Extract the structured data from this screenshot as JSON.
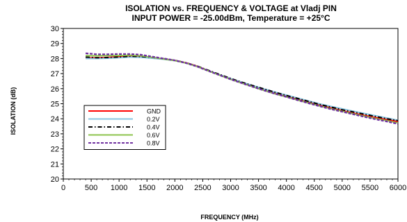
{
  "chart_data": {
    "type": "line",
    "title": "ISOLATION vs. FREQUENCY & VOLTAGE at Vladj PIN",
    "subtitle": "INPUT POWER = -25.00dBm, Temperature = +25°C",
    "xlabel": "FREQUENCY (MHz)",
    "ylabel": "ISOLATION (dB)",
    "xlim": [
      0,
      6000
    ],
    "ylim": [
      20,
      30
    ],
    "xticks": [
      0,
      500,
      1000,
      1500,
      2000,
      2500,
      3000,
      3500,
      4000,
      4500,
      5000,
      5500,
      6000
    ],
    "yticks": [
      20,
      21,
      22,
      23,
      24,
      25,
      26,
      27,
      28,
      29,
      30
    ],
    "grid": false,
    "legend_position": "left-lower",
    "x": [
      400,
      600,
      800,
      1000,
      1200,
      1400,
      1600,
      1800,
      2000,
      2200,
      2400,
      2600,
      2800,
      3000,
      3200,
      3400,
      3600,
      3800,
      4000,
      4200,
      4400,
      4600,
      4800,
      5000,
      5200,
      5400,
      5600,
      5800,
      6000
    ],
    "series": [
      {
        "name": "GND",
        "color": "#ff0000",
        "dash": "solid",
        "values": [
          28.05,
          28.05,
          28.08,
          28.12,
          28.15,
          28.12,
          28.05,
          27.97,
          27.88,
          27.72,
          27.5,
          27.2,
          26.92,
          26.65,
          26.4,
          26.15,
          25.93,
          25.7,
          25.5,
          25.3,
          25.1,
          24.9,
          24.72,
          24.55,
          24.38,
          24.22,
          24.08,
          23.95,
          23.82
        ]
      },
      {
        "name": "0.2V",
        "color": "#87c5e0",
        "dash": "solid",
        "values": [
          28.0,
          28.0,
          28.02,
          28.05,
          28.1,
          28.08,
          28.02,
          27.95,
          27.86,
          27.7,
          27.48,
          27.2,
          26.93,
          26.67,
          26.43,
          26.2,
          25.98,
          25.77,
          25.57,
          25.38,
          25.18,
          24.98,
          24.82,
          24.66,
          24.5,
          24.35,
          24.2,
          24.05,
          23.9
        ]
      },
      {
        "name": "0.4V",
        "color": "#000000",
        "dash": "dashdot",
        "values": [
          28.1,
          28.05,
          28.07,
          28.1,
          28.15,
          28.13,
          28.07,
          27.98,
          27.88,
          27.72,
          27.5,
          27.22,
          26.95,
          26.68,
          26.43,
          26.2,
          25.98,
          25.76,
          25.55,
          25.35,
          25.15,
          24.95,
          24.78,
          24.6,
          24.45,
          24.3,
          24.15,
          24.0,
          23.88
        ]
      },
      {
        "name": "0.6V",
        "color": "#8bc34a",
        "dash": "solid",
        "values": [
          28.2,
          28.18,
          28.2,
          28.2,
          28.22,
          28.18,
          28.08,
          27.97,
          27.86,
          27.7,
          27.47,
          27.18,
          26.9,
          26.62,
          26.37,
          26.12,
          25.88,
          25.65,
          25.45,
          25.25,
          25.05,
          24.85,
          24.67,
          24.5,
          24.33,
          24.17,
          24.02,
          23.88,
          23.72
        ]
      },
      {
        "name": "0.8V",
        "color": "#7030a0",
        "dash": "dashed",
        "values": [
          28.35,
          28.28,
          28.28,
          28.3,
          28.3,
          28.25,
          28.12,
          28.0,
          27.88,
          27.7,
          27.47,
          27.18,
          26.9,
          26.62,
          26.37,
          26.12,
          25.88,
          25.66,
          25.45,
          25.24,
          25.03,
          24.83,
          24.64,
          24.47,
          24.3,
          24.13,
          23.97,
          23.82,
          23.66
        ]
      }
    ]
  }
}
